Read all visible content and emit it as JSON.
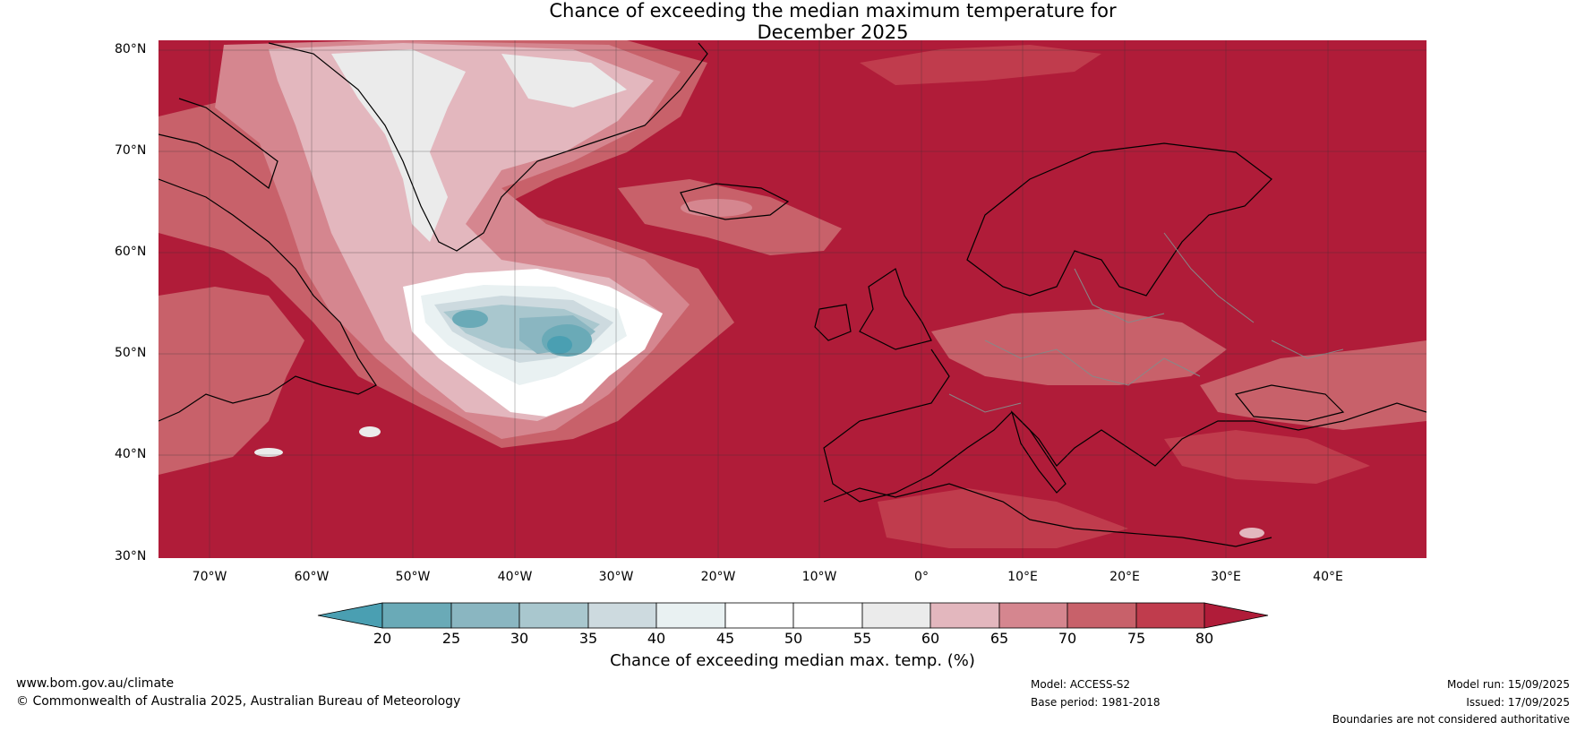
{
  "title": {
    "line1": "Chance of exceeding the median maximum temperature for",
    "line2": "December 2025"
  },
  "map": {
    "region": "North Atlantic and Europe",
    "colors": {
      "ocean_high": "#b01c39",
      "c75_80": "#c03c4d",
      "c70_75": "#c8616a",
      "c65_70": "#d5868f",
      "c60_65": "#e3b7be",
      "c55_60": "#ebebeb",
      "c45_55": "#ffffff",
      "c40_45": "#e9f1f2",
      "c35_40": "#cddadf",
      "c30_35": "#a9c7ce",
      "c25_30": "#8ab6c1",
      "c20_25": "#6aaab7",
      "below20": "#4a9fb2",
      "coastline": "#000000",
      "borders": "#888888",
      "grid": "#333333"
    },
    "lat_labels": [
      "80°N",
      "70°N",
      "60°N",
      "50°N",
      "40°N",
      "30°N"
    ],
    "lon_labels": [
      "70°W",
      "60°W",
      "50°W",
      "40°W",
      "30°W",
      "20°W",
      "10°W",
      "0°",
      "10°E",
      "20°E",
      "30°E",
      "40°E"
    ]
  },
  "colorbar": {
    "ticks": [
      "20",
      "25",
      "30",
      "35",
      "40",
      "45",
      "50",
      "55",
      "60",
      "65",
      "70",
      "75",
      "80"
    ],
    "label": "Chance of exceeding median max. temp. (%)"
  },
  "footer": {
    "website": "www.bom.gov.au/climate",
    "copyright": "© Commonwealth of Australia 2025, Australian Bureau of Meteorology",
    "model": "Model: ACCESS-S2",
    "base_period": "Base period: 1981-2018",
    "model_run": "Model run: 15/09/2025",
    "issued": "Issued: 17/09/2025",
    "disclaimer": "Boundaries are not considered authoritative"
  }
}
